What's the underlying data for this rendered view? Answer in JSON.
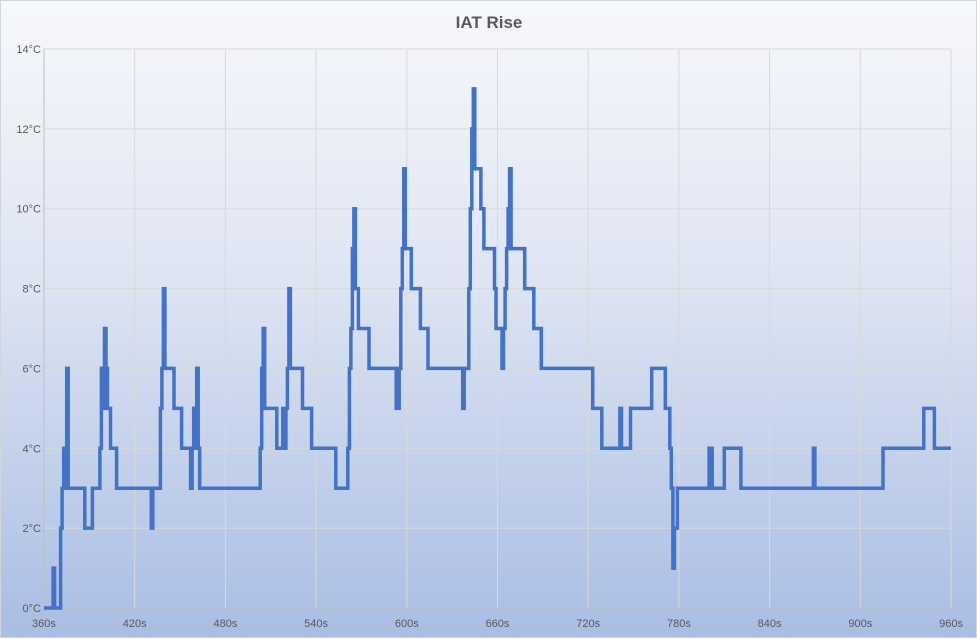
{
  "chart_data": {
    "type": "line",
    "title": "IAT Rise",
    "xlabel": "",
    "ylabel": "",
    "x_unit": "s",
    "y_unit": "°C",
    "xlim": [
      360,
      960
    ],
    "ylim": [
      0,
      14
    ],
    "x_ticks": [
      360,
      420,
      480,
      540,
      600,
      660,
      720,
      780,
      840,
      900,
      960
    ],
    "y_ticks": [
      0,
      2,
      4,
      6,
      8,
      10,
      12,
      14
    ],
    "x_tick_labels": [
      "360s",
      "420s",
      "480s",
      "540s",
      "600s",
      "660s",
      "720s",
      "780s",
      "840s",
      "900s",
      "960s"
    ],
    "y_tick_labels": [
      "0°C",
      "2°C",
      "4°C",
      "6°C",
      "8°C",
      "10°C",
      "12°C",
      "14°C"
    ],
    "grid": true,
    "legend": "none",
    "colors": {
      "line": "#4472c4",
      "grid": "#d9d9d9",
      "axis": "#bfbfbf"
    },
    "series": [
      {
        "step": true,
        "points": [
          [
            360,
            0
          ],
          [
            365,
            0
          ],
          [
            366,
            1
          ],
          [
            367,
            0
          ],
          [
            370,
            0
          ],
          [
            371,
            2
          ],
          [
            372,
            3
          ],
          [
            373,
            4
          ],
          [
            374,
            3
          ],
          [
            375,
            6
          ],
          [
            376,
            3
          ],
          [
            386,
            3
          ],
          [
            387,
            2
          ],
          [
            391,
            2
          ],
          [
            392,
            3
          ],
          [
            396,
            3
          ],
          [
            397,
            4
          ],
          [
            398,
            6
          ],
          [
            399,
            5
          ],
          [
            400,
            7
          ],
          [
            401,
            6
          ],
          [
            402,
            5
          ],
          [
            404,
            4
          ],
          [
            407,
            4
          ],
          [
            408,
            3
          ],
          [
            430,
            3
          ],
          [
            431,
            2
          ],
          [
            432,
            3
          ],
          [
            436,
            3
          ],
          [
            437,
            5
          ],
          [
            438,
            6
          ],
          [
            439,
            8
          ],
          [
            440,
            6
          ],
          [
            441,
            6
          ],
          [
            446,
            5
          ],
          [
            451,
            4
          ],
          [
            456,
            4
          ],
          [
            457,
            3
          ],
          [
            458,
            4
          ],
          [
            459,
            5
          ],
          [
            460,
            4
          ],
          [
            461,
            6
          ],
          [
            462,
            4
          ],
          [
            463,
            3
          ],
          [
            502,
            3
          ],
          [
            503,
            4
          ],
          [
            504,
            6
          ],
          [
            505,
            7
          ],
          [
            506,
            5
          ],
          [
            507,
            5
          ],
          [
            510,
            5
          ],
          [
            514,
            4
          ],
          [
            517,
            4
          ],
          [
            518,
            5
          ],
          [
            519,
            4
          ],
          [
            520,
            5
          ],
          [
            521,
            6
          ],
          [
            522,
            8
          ],
          [
            523,
            6
          ],
          [
            531,
            5
          ],
          [
            536,
            5
          ],
          [
            537,
            4
          ],
          [
            552,
            4
          ],
          [
            553,
            3
          ],
          [
            560,
            3
          ],
          [
            561,
            4
          ],
          [
            562,
            6
          ],
          [
            563,
            7
          ],
          [
            564,
            9
          ],
          [
            565,
            10
          ],
          [
            566,
            8
          ],
          [
            568,
            7
          ],
          [
            574,
            7
          ],
          [
            575,
            6
          ],
          [
            592,
            6
          ],
          [
            593,
            5
          ],
          [
            595,
            6
          ],
          [
            596,
            8
          ],
          [
            597,
            9
          ],
          [
            598,
            11
          ],
          [
            599,
            9
          ],
          [
            602,
            9
          ],
          [
            603,
            8
          ],
          [
            608,
            8
          ],
          [
            609,
            7
          ],
          [
            613,
            7
          ],
          [
            614,
            6
          ],
          [
            636,
            6
          ],
          [
            637,
            5
          ],
          [
            638,
            6
          ],
          [
            640,
            6
          ],
          [
            641,
            8
          ],
          [
            642,
            10
          ],
          [
            643,
            12
          ],
          [
            644,
            13
          ],
          [
            645,
            11
          ],
          [
            648,
            11
          ],
          [
            649,
            10
          ],
          [
            651,
            9
          ],
          [
            657,
            9
          ],
          [
            658,
            8
          ],
          [
            659,
            7
          ],
          [
            662,
            7
          ],
          [
            663,
            6
          ],
          [
            664,
            7
          ],
          [
            665,
            8
          ],
          [
            666,
            9
          ],
          [
            667,
            10
          ],
          [
            668,
            11
          ],
          [
            669,
            9
          ],
          [
            677,
            9
          ],
          [
            678,
            8
          ],
          [
            683,
            8
          ],
          [
            684,
            7
          ],
          [
            688,
            7
          ],
          [
            689,
            6
          ],
          [
            722,
            6
          ],
          [
            723,
            5
          ],
          [
            728,
            5
          ],
          [
            729,
            4
          ],
          [
            740,
            4
          ],
          [
            741,
            5
          ],
          [
            742,
            4
          ],
          [
            747,
            4
          ],
          [
            748,
            5
          ],
          [
            761,
            5
          ],
          [
            762,
            6
          ],
          [
            770,
            6
          ],
          [
            771,
            5
          ],
          [
            774,
            4
          ],
          [
            775,
            3
          ],
          [
            776,
            1
          ],
          [
            777,
            2
          ],
          [
            778,
            2
          ],
          [
            779,
            3
          ],
          [
            799,
            3
          ],
          [
            800,
            4
          ],
          [
            802,
            3
          ],
          [
            809,
            3
          ],
          [
            810,
            4
          ],
          [
            820,
            4
          ],
          [
            821,
            3
          ],
          [
            868,
            3
          ],
          [
            869,
            4
          ],
          [
            870,
            3
          ],
          [
            914,
            3
          ],
          [
            915,
            4
          ],
          [
            941,
            4
          ],
          [
            942,
            5
          ],
          [
            948,
            5
          ],
          [
            949,
            4
          ],
          [
            960,
            4
          ]
        ]
      }
    ]
  }
}
